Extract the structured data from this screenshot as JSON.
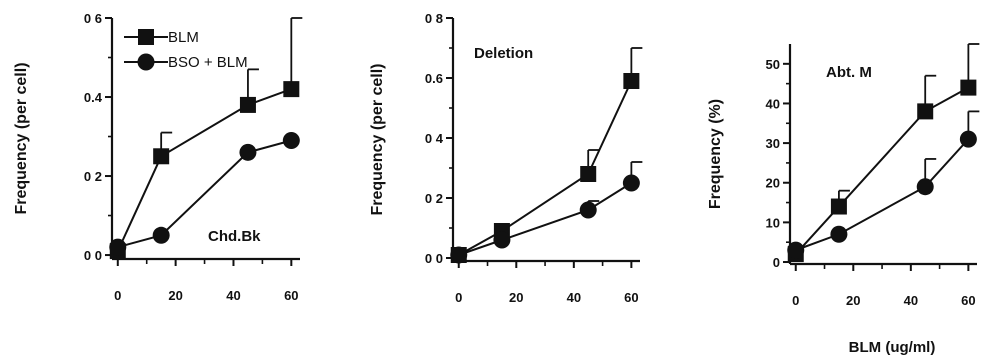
{
  "chart_data": [
    {
      "type": "line",
      "ylabel": "Frequency (per cell)",
      "annotation": "Chd.Bk",
      "x": [
        0,
        15,
        45,
        60
      ],
      "xticks": [
        0,
        20,
        40,
        60
      ],
      "xtick_labels": [
        "0",
        "20",
        "40",
        "60"
      ],
      "xlim": [
        -2,
        63
      ],
      "yticks": [
        0,
        0.2,
        0.4,
        0.6
      ],
      "ytick_labels": [
        "0 0",
        "0 2",
        "0.4",
        "0 6"
      ],
      "ylim": [
        -0.01,
        0.6
      ],
      "legend": {
        "placement": "top-left",
        "entries": [
          "BLM",
          "BSO + BLM"
        ]
      },
      "series": [
        {
          "name": "BLM",
          "marker": "square",
          "values": [
            0.01,
            0.25,
            0.38,
            0.42
          ],
          "errors": [
            0,
            0.06,
            0.09,
            0.18
          ]
        },
        {
          "name": "BSO + BLM",
          "marker": "circle",
          "values": [
            0.02,
            0.05,
            0.26,
            0.29
          ],
          "errors": [
            0,
            0,
            0,
            0
          ]
        }
      ]
    },
    {
      "type": "line",
      "ylabel": "Frequency (per cell)",
      "annotation": "Deletion",
      "x": [
        0,
        15,
        45,
        60
      ],
      "xticks": [
        0,
        20,
        40,
        60
      ],
      "xtick_labels": [
        "0",
        "20",
        "40",
        "60"
      ],
      "xlim": [
        -2,
        63
      ],
      "yticks": [
        0,
        0.2,
        0.4,
        0.6,
        0.8
      ],
      "ytick_labels": [
        "0 0",
        "0 2",
        "0 4",
        "0.6",
        "0 8"
      ],
      "ylim": [
        -0.01,
        0.8
      ],
      "series": [
        {
          "name": "BLM",
          "marker": "square",
          "values": [
            0.01,
            0.09,
            0.28,
            0.59
          ],
          "errors": [
            0,
            0,
            0.08,
            0.11
          ]
        },
        {
          "name": "BSO + BLM",
          "marker": "circle",
          "values": [
            0.01,
            0.06,
            0.16,
            0.25
          ],
          "errors": [
            0,
            0,
            0.03,
            0.07
          ]
        }
      ]
    },
    {
      "type": "line",
      "ylabel": "Frequency (%)",
      "annotation": "Abt. M",
      "xlabel": "BLM (ug/ml)",
      "x": [
        0,
        15,
        45,
        60
      ],
      "xticks": [
        0,
        20,
        40,
        60
      ],
      "xtick_labels": [
        "0",
        "20",
        "40",
        "60"
      ],
      "xlim": [
        -2,
        63
      ],
      "yticks": [
        0,
        10,
        20,
        30,
        40,
        50
      ],
      "ytick_labels": [
        "0",
        "10",
        "20",
        "30",
        "40",
        "50"
      ],
      "ylim": [
        -0.5,
        55
      ],
      "series": [
        {
          "name": "BLM",
          "marker": "square",
          "values": [
            2,
            14,
            38,
            44
          ],
          "errors": [
            0,
            4,
            9,
            11
          ]
        },
        {
          "name": "BSO + BLM",
          "marker": "circle",
          "values": [
            3,
            7,
            19,
            31
          ],
          "errors": [
            0,
            0,
            7,
            7
          ]
        }
      ]
    }
  ]
}
